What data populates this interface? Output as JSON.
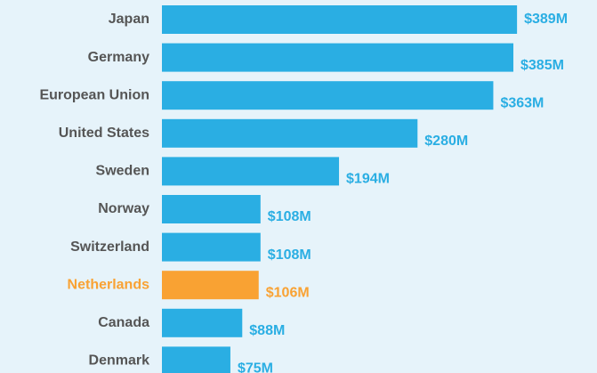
{
  "chart_data": {
    "type": "hbar",
    "categories": [
      "Japan",
      "Germany",
      "European Union",
      "United States",
      "Sweden",
      "Norway",
      "Switzerland",
      "Netherlands",
      "Canada",
      "Denmark"
    ],
    "values": [
      389,
      385,
      363,
      280,
      194,
      108,
      108,
      106,
      88,
      75
    ],
    "value_labels": [
      "$389M",
      "$385M",
      "$363M",
      "$280M",
      "$194M",
      "$108M",
      "$108M",
      "$106M",
      "$88M",
      "$75M"
    ],
    "colors": [
      "#2aaee3",
      "#2aaee3",
      "#2aaee3",
      "#2aaee3",
      "#2aaee3",
      "#2aaee3",
      "#2aaee3",
      "#f9a233",
      "#2aaee3",
      "#2aaee3"
    ]
  }
}
